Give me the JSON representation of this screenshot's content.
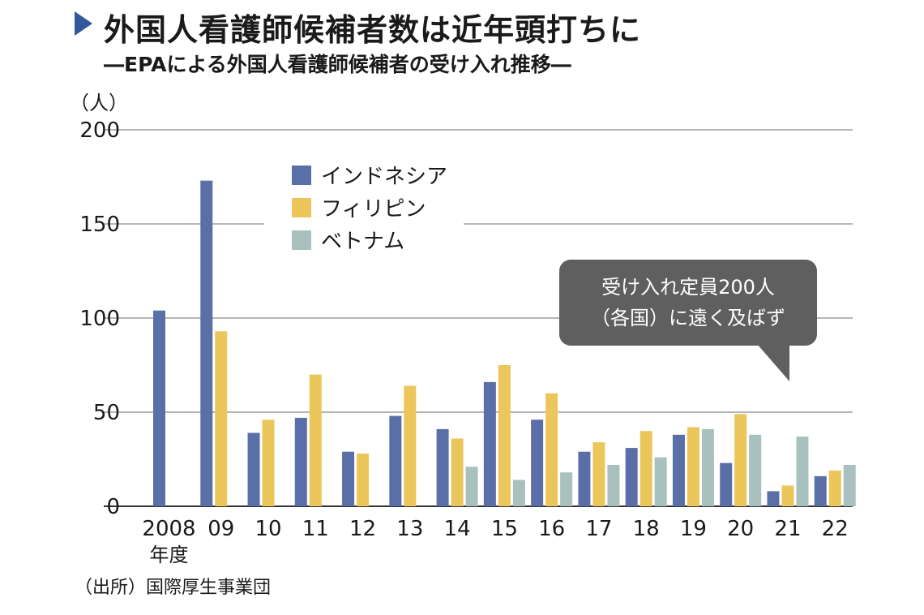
{
  "header": {
    "title": "外国人看護師候補者数は近年頭打ちに",
    "subtitle": "―EPAによる外国人看護師候補者の受け入れ推移―"
  },
  "colors": {
    "indonesia": "#5a6fa8",
    "philippines": "#eac65b",
    "vietnam": "#a9c1be",
    "grid": "#8a8a8a",
    "callout_bg": "#5f5f5f",
    "title_marker": "#33589a"
  },
  "chart_data": {
    "type": "bar",
    "title": "外国人看護師候補者数は近年頭打ちに",
    "subtitle": "―EPAによる外国人看護師候補者の受け入れ推移―",
    "ylabel": "（人）",
    "xlabel": "年度",
    "ylim": [
      0,
      200
    ],
    "yticks": [
      0,
      50,
      100,
      150,
      200
    ],
    "grid": true,
    "legend_position": "top-left",
    "categories": [
      "2008",
      "09",
      "10",
      "11",
      "12",
      "13",
      "14",
      "15",
      "16",
      "17",
      "18",
      "19",
      "20",
      "21",
      "22"
    ],
    "x_suffix_label": "年度",
    "series": [
      {
        "name": "インドネシア",
        "color": "#5a6fa8",
        "values": [
          104,
          173,
          39,
          47,
          29,
          48,
          41,
          66,
          46,
          29,
          31,
          38,
          23,
          8,
          16
        ]
      },
      {
        "name": "フィリピン",
        "color": "#eac65b",
        "values": [
          null,
          93,
          46,
          70,
          28,
          64,
          36,
          75,
          60,
          34,
          40,
          42,
          49,
          11,
          19
        ]
      },
      {
        "name": "ベトナム",
        "color": "#a9c1be",
        "values": [
          null,
          null,
          null,
          null,
          null,
          null,
          21,
          14,
          18,
          22,
          26,
          41,
          38,
          37,
          22
        ]
      }
    ],
    "annotation": {
      "line1": "受け入れ定員200人",
      "line2": "（各国）に遠く及ばず"
    }
  },
  "footer": {
    "source": "（出所）国際厚生事業団"
  }
}
